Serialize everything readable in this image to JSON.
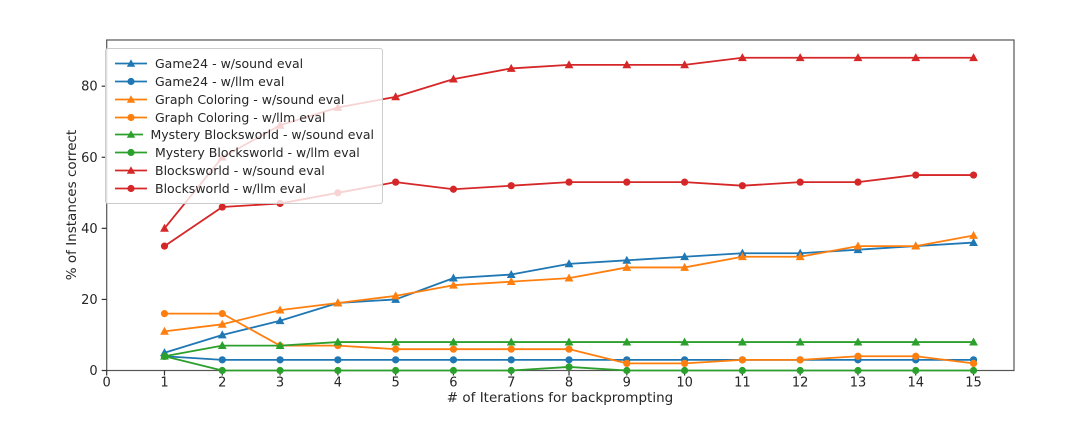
{
  "figure": {
    "background": "#ffffff",
    "text_color": "#262626",
    "spine_color": "#555555"
  },
  "chart_data": {
    "type": "line",
    "title": "",
    "xlabel": "# of Iterations for backprompting",
    "ylabel": "% of Instances correct",
    "x": [
      1,
      2,
      3,
      4,
      5,
      6,
      7,
      8,
      9,
      10,
      11,
      12,
      13,
      14,
      15
    ],
    "xticks": [
      0,
      1,
      2,
      3,
      4,
      5,
      6,
      7,
      8,
      9,
      10,
      11,
      12,
      13,
      14,
      15
    ],
    "yticks": [
      0,
      20,
      40,
      60,
      80
    ],
    "xlim": [
      0,
      15.7
    ],
    "ylim": [
      0,
      93
    ],
    "grid": false,
    "legend_position": "upper left",
    "series": [
      {
        "name": "Game24 - w/sound eval",
        "color": "#1f77b4",
        "marker": "triangle",
        "values": [
          5,
          10,
          14,
          19,
          20,
          26,
          27,
          30,
          31,
          32,
          33,
          33,
          34,
          35,
          36
        ]
      },
      {
        "name": "Game24 - w/llm eval",
        "color": "#1f77b4",
        "marker": "circle",
        "values": [
          4,
          3,
          3,
          3,
          3,
          3,
          3,
          3,
          3,
          3,
          3,
          3,
          3,
          3,
          3
        ]
      },
      {
        "name": "Graph Coloring - w/sound eval",
        "color": "#ff7f0e",
        "marker": "triangle",
        "values": [
          11,
          13,
          17,
          19,
          21,
          24,
          25,
          26,
          29,
          29,
          32,
          32,
          35,
          35,
          38
        ]
      },
      {
        "name": "Graph Coloring - w/llm eval",
        "color": "#ff7f0e",
        "marker": "circle",
        "values": [
          16,
          16,
          7,
          7,
          6,
          6,
          6,
          6,
          2,
          2,
          3,
          3,
          4,
          4,
          2
        ]
      },
      {
        "name": "Mystery Blocksworld - w/sound eval",
        "color": "#2ca02c",
        "marker": "triangle",
        "values": [
          4,
          7,
          7,
          8,
          8,
          8,
          8,
          8,
          8,
          8,
          8,
          8,
          8,
          8,
          8
        ]
      },
      {
        "name": "Mystery Blocksworld - w/llm eval",
        "color": "#2ca02c",
        "marker": "circle",
        "values": [
          4,
          0,
          0,
          0,
          0,
          0,
          0,
          1,
          0,
          0,
          0,
          0,
          0,
          0,
          0
        ]
      },
      {
        "name": "Blocksworld - w/sound eval",
        "color": "#d62728",
        "marker": "triangle",
        "values": [
          40,
          60,
          69,
          74,
          77,
          82,
          85,
          86,
          86,
          86,
          88,
          88,
          88,
          88,
          88
        ]
      },
      {
        "name": "Blocksworld - w/llm eval",
        "color": "#d62728",
        "marker": "circle",
        "values": [
          35,
          46,
          47,
          50,
          53,
          51,
          52,
          53,
          53,
          53,
          52,
          53,
          53,
          55,
          55
        ]
      }
    ]
  }
}
